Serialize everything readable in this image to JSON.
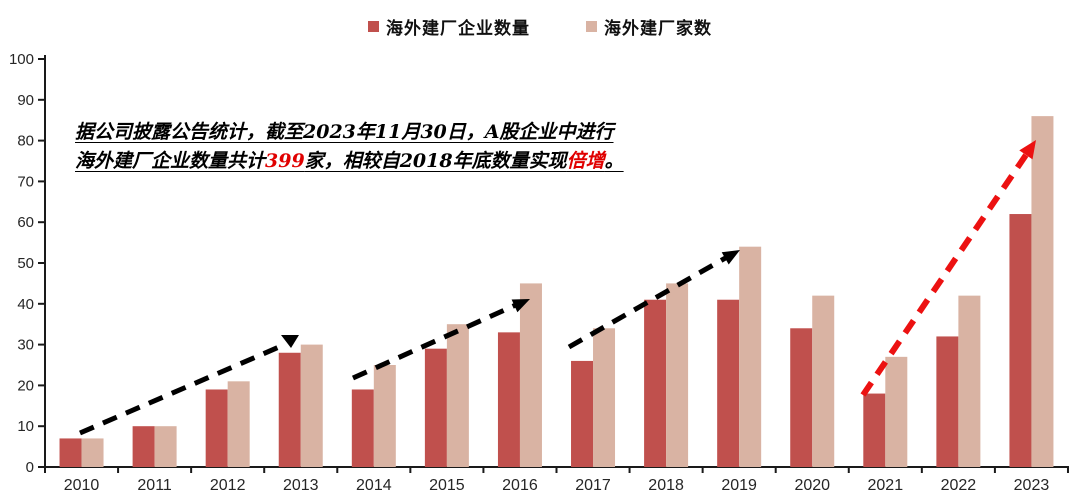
{
  "legend": [
    {
      "label": "海外建厂企业数量",
      "color": "#c0504d"
    },
    {
      "label": "海外建厂家数",
      "color": "#d9b3a3"
    }
  ],
  "annotation": {
    "line1": "据公司披露公告统计，截至2023年11月30日，A股企业中进行",
    "line2_parts": [
      {
        "text": "海外建厂企业数量共计",
        "red": false
      },
      {
        "text": "399",
        "red": true
      },
      {
        "text": "家，相较自2018年底数量实现",
        "red": false
      },
      {
        "text": "倍增",
        "red": true
      },
      {
        "text": "。",
        "red": false
      }
    ]
  },
  "chart_data": {
    "type": "bar",
    "title": "",
    "xlabel": "",
    "ylabel": "",
    "categories": [
      "2010",
      "2011",
      "2012",
      "2013",
      "2014",
      "2015",
      "2016",
      "2017",
      "2018",
      "2019",
      "2020",
      "2021",
      "2022",
      "2023"
    ],
    "series": [
      {
        "name": "海外建厂企业数量",
        "color": "#c0504d",
        "values": [
          7,
          10,
          19,
          28,
          19,
          29,
          33,
          26,
          41,
          41,
          34,
          18,
          32,
          62
        ]
      },
      {
        "name": "海外建厂家数",
        "color": "#d9b3a3",
        "values": [
          7,
          10,
          21,
          30,
          25,
          35,
          45,
          34,
          45,
          54,
          42,
          27,
          42,
          86
        ]
      }
    ],
    "ylim": [
      0,
      100
    ],
    "ytick_step": 10,
    "grid": false,
    "legend_position": "top-center",
    "axis_color": "#1a1a1a",
    "tick_label_color": "#262626",
    "arrows": [
      {
        "name": "trend-2010-2013",
        "color": "#000000",
        "width": 5,
        "dash": "15 10",
        "line": [
          80,
          433,
          279,
          347
        ],
        "head": [
          [
            281,
            335
          ],
          [
            299,
            335
          ],
          [
            291,
            348
          ]
        ]
      },
      {
        "name": "trend-2014-2016",
        "color": "#000000",
        "width": 5,
        "dash": "15 10",
        "line": [
          353,
          378,
          518,
          304
        ],
        "head": [
          [
            530,
            299
          ],
          [
            517.4,
            312.3
          ],
          [
            511.6,
            299.5
          ]
        ]
      },
      {
        "name": "trend-2017-2019",
        "color": "#000000",
        "width": 5,
        "dash": "15 10",
        "line": [
          569,
          347,
          729,
          256
        ],
        "head": [
          [
            740,
            250
          ],
          [
            728.7,
            264.5
          ],
          [
            721.7,
            252.3
          ]
        ]
      },
      {
        "name": "trend-2021-2023",
        "color": "#ec1111",
        "width": 6,
        "dash": "15 10",
        "line": [
          863,
          395,
          1028,
          152
        ],
        "head": [
          [
            1036,
            140
          ],
          [
            1032.5,
            159.4
          ],
          [
            1019.3,
            150.4
          ]
        ]
      }
    ]
  }
}
